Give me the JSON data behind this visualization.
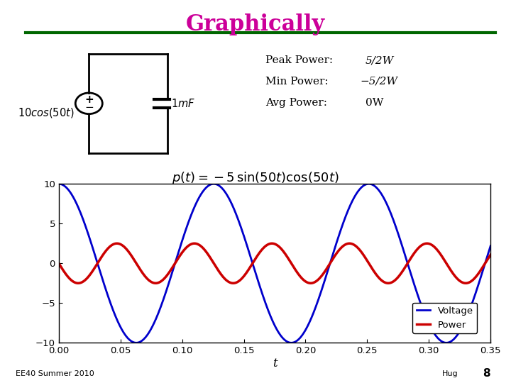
{
  "title": "Graphically",
  "title_color": "#cc0099",
  "title_fontsize": 22,
  "bg_color": "#ffffff",
  "green_line_color": "#006600",
  "plot_xlim": [
    0,
    0.35
  ],
  "plot_ylim": [
    -10,
    10
  ],
  "plot_xticks": [
    0,
    0.05,
    0.1,
    0.15,
    0.2,
    0.25,
    0.3,
    0.35
  ],
  "plot_yticks": [
    -10,
    -5,
    0,
    5,
    10
  ],
  "xlabel": "t",
  "voltage_color": "#0000cc",
  "power_color": "#cc0000",
  "footer_left": "EE40 Summer 2010",
  "footer_right_name": "Hug",
  "footer_right_num": "8"
}
